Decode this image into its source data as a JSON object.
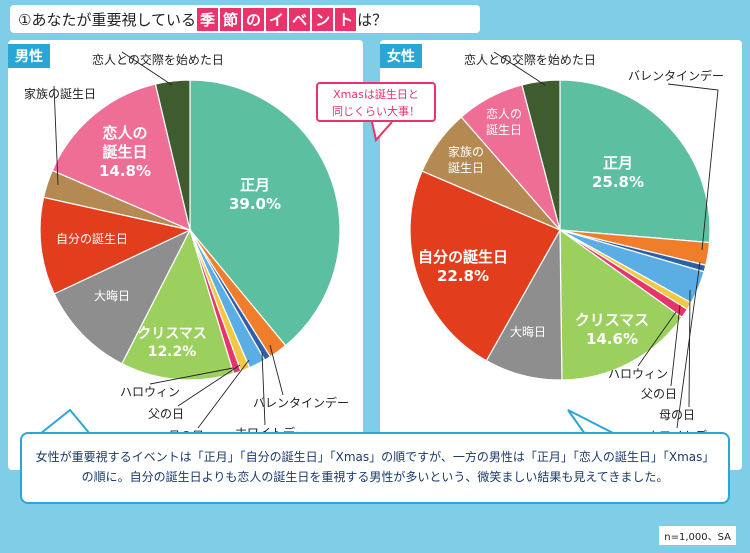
{
  "title": {
    "prefix": "①あなたが重要視している",
    "hl": [
      "季",
      "節",
      "の",
      "イ",
      "ベ",
      "ン",
      "ト"
    ],
    "suffix": "は？"
  },
  "colors": {
    "正月": "#5cbf9f",
    "バレンタインデー": "#f07d2a",
    "ホワイトデー": "#2e5fa8",
    "母の日": "#5aaee3",
    "父の日": "#f0c842",
    "ハロウィン": "#e8336b",
    "クリスマス": "#9bd05e",
    "大晦日": "#8e8e8e",
    "自分の誕生日": "#e23e1e",
    "家族の誕生日": "#b58a52",
    "恋人の誕生日": "#ee6e95",
    "恋人との交際を始めた日": "#3e5c2e"
  },
  "chart_data": [
    {
      "type": "pie",
      "group": "男性",
      "slices": [
        {
          "label": "正月",
          "value": 39.0,
          "value_label": "39.0%"
        },
        {
          "label": "バレンタインデー",
          "value": 2.0
        },
        {
          "label": "ホワイトデー",
          "value": 0.7
        },
        {
          "label": "母の日",
          "value": 1.8
        },
        {
          "label": "父の日",
          "value": 1.0
        },
        {
          "label": "ハロウィン",
          "value": 0.8
        },
        {
          "label": "クリスマス",
          "value": 12.2,
          "value_label": "12.2%"
        },
        {
          "label": "大晦日",
          "value": 10.5
        },
        {
          "label": "自分の誕生日",
          "value": 10.5
        },
        {
          "label": "家族の誕生日",
          "value": 3.0
        },
        {
          "label": "恋人の誕生日",
          "value": 14.8,
          "value_label": "14.8%"
        },
        {
          "label": "恋人との交際を始めた日",
          "value": 3.7
        }
      ]
    },
    {
      "type": "pie",
      "group": "女性",
      "slices": [
        {
          "label": "正月",
          "value": 25.8,
          "value_label": "25.8%"
        },
        {
          "label": "バレンタインデー",
          "value": 2.4
        },
        {
          "label": "ホワイトデー",
          "value": 0.7
        },
        {
          "label": "母の日",
          "value": 3.5
        },
        {
          "label": "父の日",
          "value": 0.8
        },
        {
          "label": "ハロウィン",
          "value": 1.0
        },
        {
          "label": "クリスマス",
          "value": 14.6,
          "value_label": "14.6%"
        },
        {
          "label": "大晦日",
          "value": 8.2
        },
        {
          "label": "自分の誕生日",
          "value": 22.8,
          "value_label": "22.8%"
        },
        {
          "label": "家族の誕生日",
          "value": 7.0
        },
        {
          "label": "恋人の誕生日",
          "value": 7.2
        },
        {
          "label": "恋人との交際を始めた日",
          "value": 4.0
        }
      ]
    }
  ],
  "callout": [
    "Xmasは誕生日と",
    "同じくらい大事！"
  ],
  "note": [
    "女性が重要視するイベントは「正月」「自分の誕生日」「Xmas」の順ですが、一方の男性は「正月」「恋人の誕生日」「Xmas」",
    "の順に。自分の誕生日よりも恋人の誕生日を重視する男性が多いという、微笑ましい結果も見えてきました。"
  ],
  "footnote": "n=1,000、SA"
}
